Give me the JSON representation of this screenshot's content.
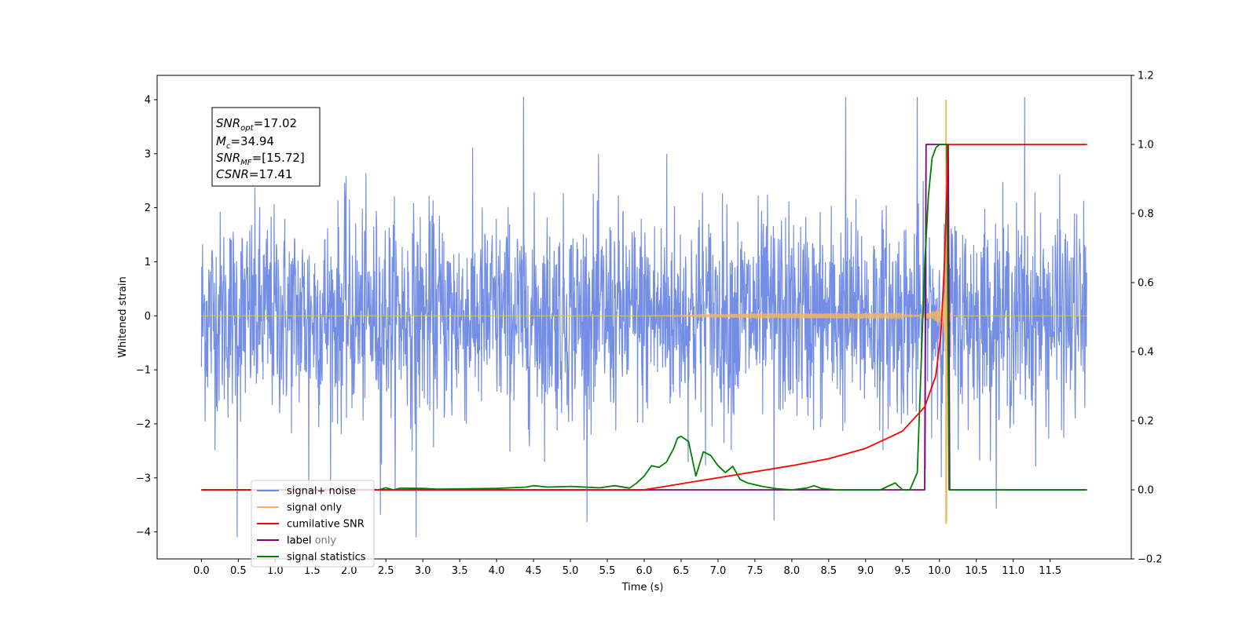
{
  "chart_data": {
    "type": "line",
    "xlabel": "Time (s)",
    "ylabel": "Whitened strain",
    "xlim": [
      -0.6,
      12.6
    ],
    "ylim": [
      -4.5,
      4.45
    ],
    "y2lim": [
      -0.2,
      1.2
    ],
    "x_ticks": [
      "0.0",
      "0.5",
      "1.0",
      "1.5",
      "2.0",
      "2.5",
      "3.0",
      "3.5",
      "4.0",
      "4.5",
      "5.0",
      "5.5",
      "6.0",
      "6.5",
      "7.0",
      "7.5",
      "8.0",
      "8.5",
      "9.0",
      "9.5",
      "10.0",
      "10.5",
      "11.0",
      "11.5"
    ],
    "y_ticks": [
      "4",
      "3",
      "2",
      "1",
      "0",
      "−1",
      "−2",
      "−3",
      "−4"
    ],
    "y2_ticks": [
      "1.2",
      "1.0",
      "0.8",
      "0.6",
      "0.4",
      "0.2",
      "0.0",
      "−0.2"
    ],
    "legend_position": "lower-left",
    "info_box": {
      "snr_opt": {
        "sym": "SNR",
        "sub": "opt",
        "value": "=17.02"
      },
      "mc": {
        "sym": "M",
        "sub": "c",
        "value": "=34.94"
      },
      "snr_mf": {
        "sym": "SNR",
        "sub": "MF",
        "value": "=[15.72]"
      },
      "csnr": {
        "sym": "CSNR",
        "sub": "",
        "value": "=17.41"
      }
    },
    "series": [
      {
        "name": "signal+ noise",
        "color": "#6b88e3",
        "axis": "left",
        "description_value": "noise std ~0.95 over 0–12 s"
      },
      {
        "name": "signal only",
        "color": "#f5b560",
        "axis": "left",
        "chirp_merger_time": 10.1,
        "peak_amplitude": 4.0
      },
      {
        "name": "cumilative SNR",
        "color": "#ff0000",
        "axis": "right",
        "x": [
          0.0,
          6.0,
          7.0,
          8.0,
          8.5,
          9.0,
          9.5,
          9.8,
          9.95,
          10.02,
          10.07,
          10.12,
          10.14,
          12.0
        ],
        "y": [
          0.0,
          0.0,
          0.035,
          0.07,
          0.09,
          0.12,
          0.17,
          0.24,
          0.33,
          0.45,
          0.66,
          1.0,
          1.0,
          1.0
        ]
      },
      {
        "name": "label",
        "color": "#800080",
        "axis": "right",
        "x": [
          0.0,
          9.8,
          9.82,
          10.12,
          10.14,
          12.0
        ],
        "y": [
          0.0,
          0.0,
          1.0,
          1.0,
          0.0,
          0.0
        ]
      },
      {
        "name": "label only",
        "color": "#808080",
        "axis": "right",
        "x": [],
        "y": []
      },
      {
        "name": "signal statistics",
        "color": "#008000",
        "axis": "right",
        "x": [
          0.0,
          2.4,
          2.5,
          2.6,
          2.7,
          3.0,
          3.2,
          3.6,
          4.0,
          4.4,
          4.5,
          4.7,
          5.0,
          5.4,
          5.6,
          5.8,
          5.9,
          6.0,
          6.1,
          6.2,
          6.3,
          6.4,
          6.45,
          6.5,
          6.6,
          6.7,
          6.8,
          6.9,
          7.0,
          7.1,
          7.2,
          7.3,
          7.4,
          7.6,
          7.8,
          8.0,
          8.2,
          8.3,
          8.4,
          8.6,
          9.0,
          9.2,
          9.4,
          9.5,
          9.6,
          9.7,
          9.75,
          9.8,
          9.85,
          9.9,
          9.95,
          10.0,
          10.05,
          10.1,
          10.13,
          10.15,
          10.2,
          12.0
        ],
        "y": [
          0.0,
          0.0,
          0.006,
          0.0,
          0.005,
          0.004,
          0.002,
          0.003,
          0.004,
          0.008,
          0.012,
          0.008,
          0.01,
          0.006,
          0.012,
          0.005,
          0.02,
          0.04,
          0.07,
          0.065,
          0.08,
          0.12,
          0.15,
          0.155,
          0.14,
          0.04,
          0.11,
          0.1,
          0.07,
          0.05,
          0.068,
          0.03,
          0.02,
          0.01,
          0.003,
          0.0,
          0.005,
          0.012,
          0.004,
          0.0,
          0.0,
          0.0,
          0.02,
          0.0,
          0.0,
          0.05,
          0.35,
          0.65,
          0.85,
          0.96,
          0.99,
          1.0,
          1.0,
          1.0,
          0.0,
          0.0,
          0.0,
          0.0
        ]
      }
    ]
  }
}
